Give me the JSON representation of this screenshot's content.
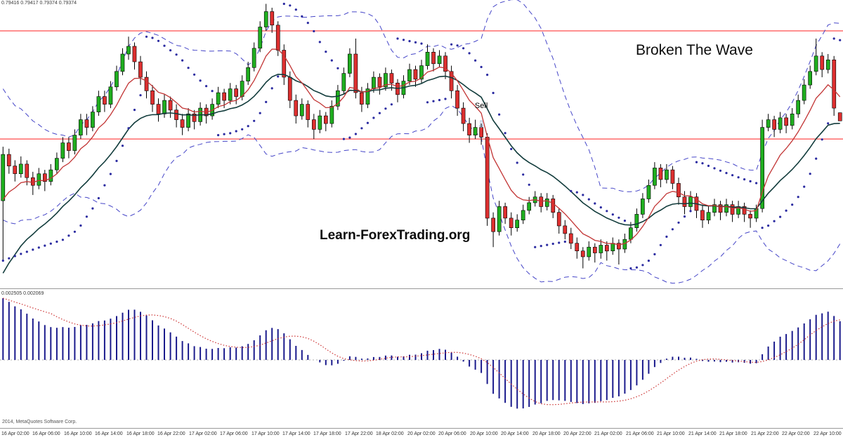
{
  "meta": {
    "quote_line": "0.79416 0.79417 0.79374 0.79374",
    "macd_values": "0.002505 0.002069",
    "annotation_title": "Broken The Wave",
    "watermark": "Learn-ForexTrading.org",
    "copyright": "2014, MetaQuotes Software Corp."
  },
  "colors": {
    "background": "#ffffff",
    "candle_up": "#1fae1f",
    "candle_down": "#dd2f2f",
    "wick": "#000000",
    "bollinger": "#4646c8",
    "sar_dot": "#2a2aa0",
    "ma_fast": "#c23434",
    "ma_slow": "#123c3c",
    "hline": "#ff4d4d",
    "macd_bar": "#1a1a8c",
    "macd_signal": "#cc3333",
    "macd_zero": "#b0b0b0",
    "sell_arrow": "#8fa8cf",
    "axis_text": "#333333"
  },
  "chart_data": {
    "type": "candlestick",
    "subpane_type": "macd-histogram",
    "price_min": 0.7851,
    "price_max": 0.8,
    "hlines": [
      0.7984,
      0.7928
    ],
    "indicators": {
      "bollinger": {
        "period": 20,
        "deviation": 2,
        "warmup_sigma": 0.0017
      },
      "ma_fast": {
        "period": 8,
        "seed": 0.789
      },
      "ma_slow": {
        "period": 20,
        "seed": 0.7852
      },
      "sar": {
        "step": 0.02,
        "max": 0.2
      },
      "macd": {
        "fast": 12,
        "slow": 26,
        "signal": 9,
        "seed_fast_offset": -0.0012,
        "seed_slow_offset": -0.0037
      }
    },
    "sell_marker": {
      "label": "Sell",
      "index": 80,
      "label_price": 0.7944,
      "arrow_price": 0.7936
    },
    "candles": [
      [
        0.7896,
        0.7924,
        0.7865,
        0.792
      ],
      [
        0.792,
        0.7923,
        0.791,
        0.7914
      ],
      [
        0.7914,
        0.7917,
        0.7906,
        0.791
      ],
      [
        0.791,
        0.7919,
        0.7908,
        0.7915
      ],
      [
        0.7915,
        0.7917,
        0.7904,
        0.7908
      ],
      [
        0.7908,
        0.7911,
        0.7899,
        0.7904
      ],
      [
        0.7904,
        0.7913,
        0.7902,
        0.791
      ],
      [
        0.791,
        0.7912,
        0.7901,
        0.7906
      ],
      [
        0.7906,
        0.7915,
        0.7904,
        0.7912
      ],
      [
        0.7912,
        0.7921,
        0.791,
        0.7918
      ],
      [
        0.7918,
        0.7929,
        0.7916,
        0.7926
      ],
      [
        0.7926,
        0.7929,
        0.7918,
        0.7922
      ],
      [
        0.7922,
        0.7933,
        0.792,
        0.793
      ],
      [
        0.793,
        0.7941,
        0.7928,
        0.7938
      ],
      [
        0.7938,
        0.7941,
        0.793,
        0.7934
      ],
      [
        0.7934,
        0.7945,
        0.7932,
        0.7942
      ],
      [
        0.7942,
        0.7953,
        0.794,
        0.795
      ],
      [
        0.795,
        0.7953,
        0.7942,
        0.7946
      ],
      [
        0.7946,
        0.7958,
        0.7944,
        0.7955
      ],
      [
        0.7955,
        0.7966,
        0.7953,
        0.7963
      ],
      [
        0.7963,
        0.7975,
        0.7961,
        0.7972
      ],
      [
        0.7972,
        0.7981,
        0.7969,
        0.7976
      ],
      [
        0.7976,
        0.7978,
        0.7964,
        0.7968
      ],
      [
        0.7968,
        0.7971,
        0.7956,
        0.796
      ],
      [
        0.796,
        0.7963,
        0.7949,
        0.7953
      ],
      [
        0.7953,
        0.7956,
        0.7942,
        0.7946
      ],
      [
        0.7946,
        0.7949,
        0.7937,
        0.7941
      ],
      [
        0.7941,
        0.7951,
        0.7939,
        0.7948
      ],
      [
        0.7948,
        0.795,
        0.7939,
        0.7943
      ],
      [
        0.7943,
        0.7946,
        0.7934,
        0.7938
      ],
      [
        0.7938,
        0.7941,
        0.793,
        0.7934
      ],
      [
        0.7934,
        0.7944,
        0.7932,
        0.7941
      ],
      [
        0.7941,
        0.7943,
        0.7933,
        0.7937
      ],
      [
        0.7937,
        0.7947,
        0.7935,
        0.7944
      ],
      [
        0.7944,
        0.7946,
        0.7936,
        0.794
      ],
      [
        0.794,
        0.7949,
        0.7938,
        0.7946
      ],
      [
        0.7946,
        0.7955,
        0.7944,
        0.7952
      ],
      [
        0.7952,
        0.7954,
        0.7944,
        0.7948
      ],
      [
        0.7948,
        0.7957,
        0.7946,
        0.7954
      ],
      [
        0.7954,
        0.7956,
        0.7946,
        0.795
      ],
      [
        0.795,
        0.7961,
        0.7948,
        0.7958
      ],
      [
        0.7958,
        0.7968,
        0.7956,
        0.7965
      ],
      [
        0.7965,
        0.7978,
        0.7963,
        0.7975
      ],
      [
        0.7975,
        0.7989,
        0.7973,
        0.7986
      ],
      [
        0.7986,
        0.7998,
        0.7984,
        0.7994
      ],
      [
        0.7994,
        0.7996,
        0.7983,
        0.7987
      ],
      [
        0.7987,
        0.7989,
        0.7971,
        0.7974
      ],
      [
        0.7974,
        0.7977,
        0.7956,
        0.796
      ],
      [
        0.796,
        0.7963,
        0.7944,
        0.7948
      ],
      [
        0.7948,
        0.7951,
        0.7936,
        0.794
      ],
      [
        0.794,
        0.7949,
        0.7938,
        0.7946
      ],
      [
        0.7946,
        0.7948,
        0.7934,
        0.7938
      ],
      [
        0.7938,
        0.7941,
        0.7928,
        0.7933
      ],
      [
        0.7933,
        0.7943,
        0.7931,
        0.794
      ],
      [
        0.794,
        0.7942,
        0.7932,
        0.7936
      ],
      [
        0.7936,
        0.7948,
        0.7934,
        0.7945
      ],
      [
        0.7945,
        0.7956,
        0.7943,
        0.7953
      ],
      [
        0.7953,
        0.7965,
        0.7951,
        0.7962
      ],
      [
        0.7962,
        0.7975,
        0.796,
        0.7972
      ],
      [
        0.7972,
        0.798,
        0.7949,
        0.7952
      ],
      [
        0.7952,
        0.7955,
        0.7942,
        0.7946
      ],
      [
        0.7946,
        0.7957,
        0.7944,
        0.7954
      ],
      [
        0.7954,
        0.7963,
        0.7952,
        0.796
      ],
      [
        0.796,
        0.7962,
        0.7951,
        0.7955
      ],
      [
        0.7955,
        0.7965,
        0.7953,
        0.7962
      ],
      [
        0.7962,
        0.7964,
        0.7953,
        0.7957
      ],
      [
        0.7957,
        0.7959,
        0.7947,
        0.7951
      ],
      [
        0.7951,
        0.7961,
        0.7949,
        0.7958
      ],
      [
        0.7958,
        0.7967,
        0.7956,
        0.7964
      ],
      [
        0.7964,
        0.7966,
        0.7955,
        0.7959
      ],
      [
        0.7959,
        0.7969,
        0.7957,
        0.7966
      ],
      [
        0.7966,
        0.7977,
        0.7964,
        0.7973
      ],
      [
        0.7973,
        0.7975,
        0.7963,
        0.7967
      ],
      [
        0.7967,
        0.7974,
        0.7965,
        0.7971
      ],
      [
        0.7971,
        0.7973,
        0.7959,
        0.7963
      ],
      [
        0.7963,
        0.7966,
        0.7949,
        0.7953
      ],
      [
        0.7953,
        0.7956,
        0.794,
        0.7944
      ],
      [
        0.7944,
        0.7947,
        0.7932,
        0.7936
      ],
      [
        0.7936,
        0.7939,
        0.7926,
        0.793
      ],
      [
        0.793,
        0.7938,
        0.7928,
        0.7934
      ],
      [
        0.7934,
        0.7936,
        0.7925,
        0.7929
      ],
      [
        0.7929,
        0.7931,
        0.7883,
        0.7887
      ],
      [
        0.7887,
        0.789,
        0.7872,
        0.788
      ],
      [
        0.788,
        0.7896,
        0.7878,
        0.7893
      ],
      [
        0.7893,
        0.7895,
        0.7884,
        0.7887
      ],
      [
        0.7887,
        0.789,
        0.7878,
        0.7882
      ],
      [
        0.7882,
        0.7889,
        0.788,
        0.7886
      ],
      [
        0.7886,
        0.7894,
        0.7884,
        0.7891
      ],
      [
        0.7891,
        0.7898,
        0.7889,
        0.7895
      ],
      [
        0.7895,
        0.7901,
        0.7893,
        0.7898
      ],
      [
        0.7898,
        0.79,
        0.789,
        0.7893
      ],
      [
        0.7893,
        0.79,
        0.7891,
        0.7897
      ],
      [
        0.7897,
        0.7899,
        0.7887,
        0.789
      ],
      [
        0.789,
        0.7892,
        0.7879,
        0.7883
      ],
      [
        0.7883,
        0.7886,
        0.7876,
        0.7879
      ],
      [
        0.7879,
        0.7882,
        0.7871,
        0.7874
      ],
      [
        0.7874,
        0.7877,
        0.7866,
        0.787
      ],
      [
        0.787,
        0.7872,
        0.7861,
        0.7867
      ],
      [
        0.7867,
        0.7875,
        0.7865,
        0.7872
      ],
      [
        0.7872,
        0.7874,
        0.7864,
        0.7869
      ],
      [
        0.7869,
        0.7876,
        0.7866,
        0.7873
      ],
      [
        0.7873,
        0.7875,
        0.7865,
        0.787
      ],
      [
        0.787,
        0.7877,
        0.7868,
        0.7874
      ],
      [
        0.7874,
        0.7876,
        0.7863,
        0.7871
      ],
      [
        0.7871,
        0.7879,
        0.7869,
        0.7876
      ],
      [
        0.7876,
        0.7885,
        0.7874,
        0.7882
      ],
      [
        0.7882,
        0.7892,
        0.788,
        0.7889
      ],
      [
        0.7889,
        0.79,
        0.7887,
        0.7897
      ],
      [
        0.7897,
        0.7907,
        0.7895,
        0.7904
      ],
      [
        0.7904,
        0.7916,
        0.7902,
        0.7913
      ],
      [
        0.7913,
        0.7915,
        0.7903,
        0.7907
      ],
      [
        0.7907,
        0.7915,
        0.7905,
        0.7912
      ],
      [
        0.7912,
        0.7914,
        0.7902,
        0.7905
      ],
      [
        0.7905,
        0.7908,
        0.7894,
        0.7898
      ],
      [
        0.7898,
        0.7901,
        0.7889,
        0.7893
      ],
      [
        0.7893,
        0.7901,
        0.7891,
        0.7898
      ],
      [
        0.7898,
        0.79,
        0.7887,
        0.7891
      ],
      [
        0.7891,
        0.7894,
        0.7882,
        0.7886
      ],
      [
        0.7886,
        0.7893,
        0.7884,
        0.789
      ],
      [
        0.789,
        0.7897,
        0.7888,
        0.7894
      ],
      [
        0.7894,
        0.7896,
        0.7886,
        0.789
      ],
      [
        0.789,
        0.7897,
        0.7888,
        0.7894
      ],
      [
        0.7894,
        0.7896,
        0.7885,
        0.7889
      ],
      [
        0.7889,
        0.7896,
        0.7887,
        0.7893
      ],
      [
        0.7893,
        0.7895,
        0.7885,
        0.7889
      ],
      [
        0.7889,
        0.7891,
        0.7882,
        0.7887
      ],
      [
        0.7887,
        0.7894,
        0.7885,
        0.7892
      ],
      [
        0.7892,
        0.7938,
        0.789,
        0.7934
      ],
      [
        0.7934,
        0.7941,
        0.7932,
        0.7938
      ],
      [
        0.7938,
        0.794,
        0.7929,
        0.7933
      ],
      [
        0.7933,
        0.7942,
        0.7931,
        0.7939
      ],
      [
        0.7939,
        0.7941,
        0.7931,
        0.7935
      ],
      [
        0.7935,
        0.7944,
        0.7933,
        0.7941
      ],
      [
        0.7941,
        0.7951,
        0.7939,
        0.7948
      ],
      [
        0.7948,
        0.7959,
        0.7946,
        0.7956
      ],
      [
        0.7956,
        0.7966,
        0.7954,
        0.7963
      ],
      [
        0.7963,
        0.798,
        0.7961,
        0.7971
      ],
      [
        0.7971,
        0.7973,
        0.796,
        0.7964
      ],
      [
        0.7964,
        0.7972,
        0.7962,
        0.7969
      ],
      [
        0.7969,
        0.7971,
        0.794,
        0.7944
      ],
      [
        0.79416,
        0.79417,
        0.79374,
        0.79374
      ]
    ],
    "time_labels": [
      "16 Apr 02:00",
      "16 Apr 06:00",
      "16 Apr 10:00",
      "16 Apr 14:00",
      "16 Apr 18:00",
      "16 Apr 22:00",
      "17 Apr 02:00",
      "17 Apr 06:00",
      "17 Apr 10:00",
      "17 Apr 14:00",
      "17 Apr 18:00",
      "17 Apr 22:00",
      "18 Apr 02:00",
      "20 Apr 02:00",
      "20 Apr 06:00",
      "20 Apr 10:00",
      "20 Apr 14:00",
      "20 Apr 18:00",
      "20 Apr 22:00",
      "21 Apr 02:00",
      "21 Apr 06:00",
      "21 Apr 10:00",
      "21 Apr 14:00",
      "21 Apr 18:00",
      "21 Apr 22:00",
      "22 Apr 02:00",
      "22 Apr 10:00"
    ]
  }
}
